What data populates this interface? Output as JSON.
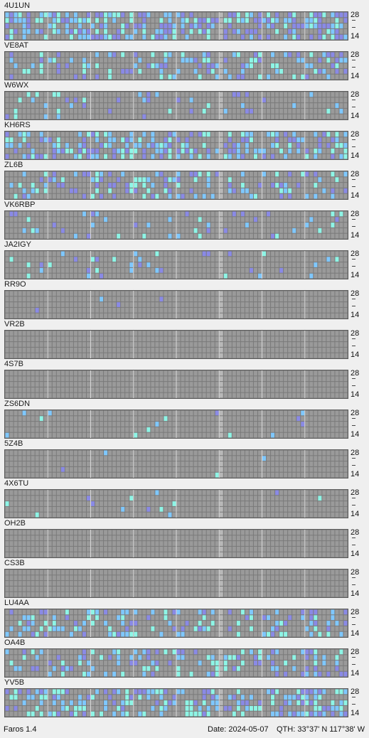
{
  "scale": {
    "high": "28",
    "low": "14"
  },
  "colors": {
    "grid_bg": "#7a7a7a",
    "cell_empty": "#9a9a9a",
    "cell_signal_weak": "#8a8ae6",
    "cell_signal_mid": "#7fc8ff",
    "cell_signal_strong": "#8ef5e6",
    "now_marker": "#b8b8b8"
  },
  "beacons": [
    {
      "name": "4U1UN",
      "activity": 0.55
    },
    {
      "name": "VE8AT",
      "activity": 0.35
    },
    {
      "name": "W6WX",
      "activity": 0.12
    },
    {
      "name": "KH6RS",
      "activity": 0.5
    },
    {
      "name": "ZL6B",
      "activity": 0.3
    },
    {
      "name": "VK6RBP",
      "activity": 0.1
    },
    {
      "name": "JA2IGY",
      "activity": 0.08
    },
    {
      "name": "RR9O",
      "activity": 0.02
    },
    {
      "name": "VR2B",
      "activity": 0.0
    },
    {
      "name": "4S7B",
      "activity": 0.0
    },
    {
      "name": "ZS6DN",
      "activity": 0.03
    },
    {
      "name": "5Z4B",
      "activity": 0.01
    },
    {
      "name": "4X6TU",
      "activity": 0.02
    },
    {
      "name": "OH2B",
      "activity": 0.0
    },
    {
      "name": "CS3B",
      "activity": 0.0
    },
    {
      "name": "LU4AA",
      "activity": 0.3
    },
    {
      "name": "OA4B",
      "activity": 0.3
    },
    {
      "name": "YV5B",
      "activity": 0.45
    }
  ],
  "footer": {
    "version": "Faros 1.4",
    "date": "Date: 2024-05-07",
    "qth": "QTH: 33°37' N  117°38' W"
  }
}
